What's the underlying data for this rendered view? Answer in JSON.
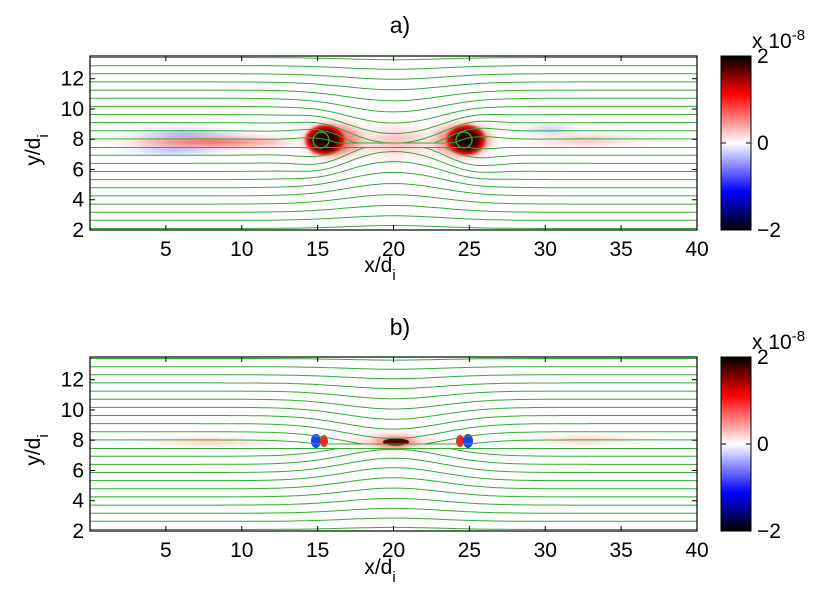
{
  "chart_data": [
    {
      "type": "heatmap",
      "title": "a)",
      "xlabel": "x/d",
      "xlabel_sub": "i",
      "ylabel": "y/d",
      "ylabel_sub": "i",
      "xlim": [
        0,
        40
      ],
      "ylim": [
        2,
        13.5
      ],
      "xticks": [
        5,
        10,
        15,
        20,
        25,
        30,
        35,
        40
      ],
      "yticks": [
        2,
        4,
        6,
        8,
        10,
        12
      ],
      "colorbar": {
        "min": -2,
        "max": 2,
        "ticks": [
          2,
          0,
          -2
        ],
        "scale_label": "x 10",
        "scale_exponent": "-8"
      },
      "colormap": [
        "#000000",
        "#0000ff",
        "#ffffff",
        "#ff0000",
        "#000000"
      ],
      "contour_color": "#33aa33",
      "features": [
        {
          "x": 15.5,
          "y": 7.6,
          "value": 2,
          "kind": "magnetic island"
        },
        {
          "x": 25.0,
          "y": 7.6,
          "value": 2,
          "kind": "magnetic island"
        },
        {
          "x": 20.0,
          "y": 7.6,
          "kind": "x-point"
        }
      ]
    },
    {
      "type": "heatmap",
      "title": "b)",
      "xlabel": "x/d",
      "xlabel_sub": "i",
      "ylabel": "y/d",
      "ylabel_sub": "i",
      "xlim": [
        0,
        40
      ],
      "ylim": [
        2,
        13.5
      ],
      "xticks": [
        5,
        10,
        15,
        20,
        25,
        30,
        35,
        40
      ],
      "yticks": [
        2,
        4,
        6,
        8,
        10,
        12
      ],
      "colorbar": {
        "min": -2,
        "max": 2,
        "ticks": [
          2,
          0,
          -2
        ],
        "scale_label": "x 10",
        "scale_exponent": "-8"
      },
      "colormap": [
        "#000000",
        "#0000ff",
        "#ffffff",
        "#ff0000",
        "#000000"
      ],
      "contour_color": "#33aa33",
      "features": [
        {
          "x": 20.0,
          "y": 7.6,
          "value": 2,
          "kind": "current sheet"
        },
        {
          "x": 15.2,
          "y": 7.6,
          "kind": "dipole"
        },
        {
          "x": 24.8,
          "y": 7.6,
          "kind": "dipole"
        }
      ]
    }
  ]
}
